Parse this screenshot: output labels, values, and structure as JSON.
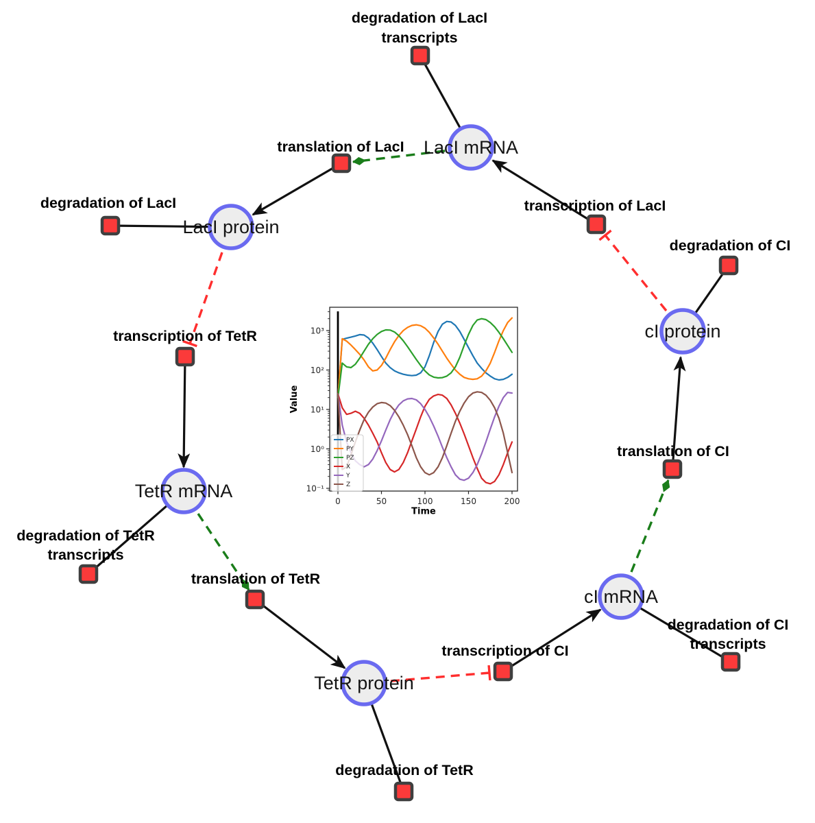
{
  "network": {
    "species": {
      "laci_mrna": "LacI mRNA",
      "laci_protein": "LacI protein",
      "tetr_mrna": "TetR mRNA",
      "tetr_protein": "TetR protein",
      "ci_mrna": "cI mRNA",
      "ci_protein": "cI protein"
    },
    "reactions": {
      "deg_laci_transcripts_l1": "degradation of LacI",
      "deg_laci_transcripts_l2": "transcripts",
      "translation_laci": "translation of LacI",
      "transcription_laci": "transcription of LacI",
      "deg_ci": "degradation of CI",
      "deg_laci": "degradation of LacI",
      "transcription_tetr": "transcription of TetR",
      "deg_tetr_transcripts_l1": "degradation of TetR",
      "deg_tetr_transcripts_l2": "transcripts",
      "translation_tetr": "translation of TetR",
      "deg_tetr": "degradation of TetR",
      "transcription_ci": "transcription of CI",
      "deg_ci_transcripts_l1": "degradation of CI",
      "deg_ci_transcripts_l2": "transcripts",
      "translation_ci": "translation of CI"
    },
    "colors": {
      "species_fill": "#ededed",
      "species_stroke": "#6a6af0",
      "reaction_fill": "#fb3a3a",
      "reaction_stroke": "#3f3f3f",
      "edge": "#111111",
      "inhibition": "#ff2e2e",
      "modifier": "#1a7d1a"
    }
  },
  "chart_data": {
    "type": "line",
    "title": "",
    "xlabel": "Time",
    "ylabel": "Value",
    "y_scale": "log",
    "grid": false,
    "legend_position": "lower left",
    "x_range": [
      0,
      200
    ],
    "y_range": [
      0.05,
      4000
    ],
    "annotation_vline_t": 0,
    "x_ticks": [
      0,
      50,
      100,
      150,
      200
    ],
    "y_ticks": [
      {
        "label": "10³",
        "value": 1000
      },
      {
        "label": "10²",
        "value": 100
      },
      {
        "label": "10¹",
        "value": 10
      },
      {
        "label": "10⁰",
        "value": 1
      },
      {
        "label": "10⁻¹",
        "value": 0.1
      }
    ],
    "x": [
      0,
      5,
      10,
      15,
      20,
      25,
      30,
      35,
      40,
      45,
      50,
      55,
      60,
      65,
      70,
      75,
      80,
      85,
      90,
      95,
      100,
      105,
      110,
      115,
      120,
      125,
      130,
      135,
      140,
      145,
      150,
      155,
      160,
      165,
      170,
      175,
      180,
      185,
      190,
      195,
      200
    ],
    "series": [
      {
        "name": "PX",
        "color": "#1f77b4",
        "values": [
          20,
          600,
          640,
          680,
          730,
          790,
          770,
          650,
          480,
          330,
          220,
          150,
          115,
          95,
          85,
          78,
          74,
          72,
          74,
          85,
          120,
          230,
          500,
          950,
          1450,
          1700,
          1650,
          1350,
          950,
          600,
          370,
          230,
          150,
          110,
          85,
          70,
          60,
          56,
          58,
          65,
          78
        ]
      },
      {
        "name": "PY",
        "color": "#ff7f0e",
        "values": [
          20,
          620,
          540,
          430,
          330,
          250,
          180,
          120,
          95,
          100,
          130,
          200,
          330,
          520,
          750,
          1000,
          1200,
          1350,
          1400,
          1330,
          1150,
          900,
          650,
          450,
          300,
          200,
          140,
          100,
          78,
          65,
          60,
          58,
          60,
          70,
          95,
          150,
          280,
          550,
          1000,
          1600,
          2100
        ]
      },
      {
        "name": "PZ",
        "color": "#2ca02c",
        "values": [
          20,
          150,
          120,
          115,
          140,
          200,
          300,
          450,
          620,
          800,
          950,
          1040,
          1030,
          920,
          740,
          550,
          390,
          270,
          185,
          130,
          95,
          75,
          66,
          63,
          64,
          70,
          85,
          120,
          210,
          420,
          800,
          1350,
          1850,
          2000,
          1900,
          1600,
          1250,
          900,
          620,
          420,
          280
        ]
      },
      {
        "name": "X",
        "color": "#d62728",
        "values": [
          25,
          11,
          7.5,
          8,
          9,
          8,
          6,
          4,
          2.5,
          1.5,
          0.8,
          0.45,
          0.3,
          0.26,
          0.3,
          0.45,
          0.8,
          1.6,
          3.2,
          6.5,
          12,
          18,
          22,
          24,
          23,
          19,
          13,
          8,
          4.5,
          2.4,
          1.2,
          0.6,
          0.32,
          0.18,
          0.14,
          0.13,
          0.15,
          0.22,
          0.4,
          0.8,
          1.5
        ]
      },
      {
        "name": "Y",
        "color": "#9467bd",
        "values": [
          25,
          4,
          1.5,
          0.8,
          0.5,
          0.4,
          0.35,
          0.4,
          0.55,
          0.9,
          1.6,
          3,
          5.5,
          9,
          13,
          16.5,
          18.5,
          19,
          17.5,
          14,
          10,
          6.5,
          3.8,
          2.1,
          1.1,
          0.6,
          0.35,
          0.22,
          0.17,
          0.16,
          0.18,
          0.25,
          0.4,
          0.75,
          1.5,
          3.2,
          6.5,
          12,
          20,
          27,
          26
        ]
      },
      {
        "name": "Z",
        "color": "#8c564b",
        "values": [
          25,
          0.3,
          0.35,
          0.7,
          1.5,
          3,
          5.5,
          8.5,
          11.5,
          14,
          15,
          14.5,
          12.5,
          9.5,
          6.5,
          4,
          2.3,
          1.2,
          0.6,
          0.35,
          0.25,
          0.22,
          0.25,
          0.35,
          0.6,
          1.2,
          2.5,
          5,
          9,
          14.5,
          21,
          26,
          28,
          27,
          23,
          17,
          11,
          6,
          2.5,
          0.8,
          0.25
        ]
      }
    ]
  }
}
